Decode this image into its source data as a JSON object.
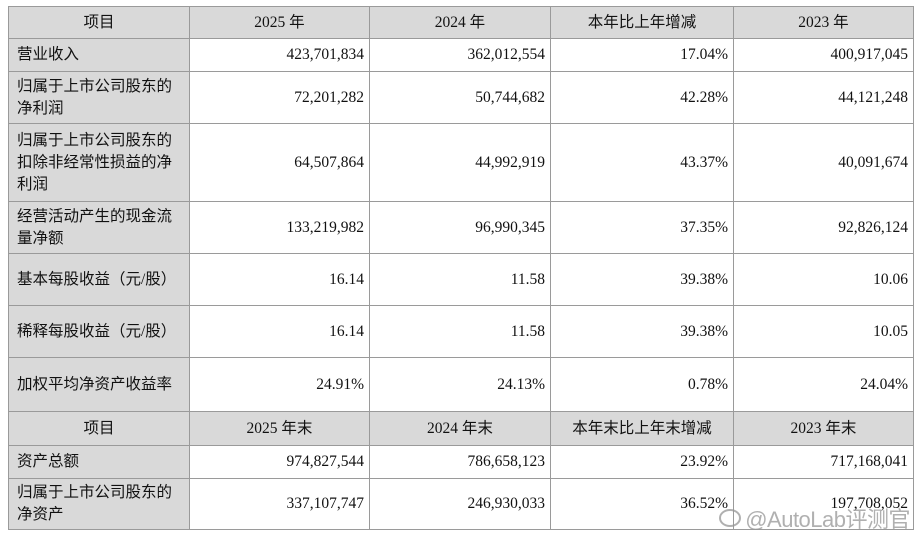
{
  "table1": {
    "headers": [
      "项目",
      "2025 年",
      "2024 年",
      "本年比上年增减",
      "2023 年"
    ],
    "rows": [
      {
        "label": "营业收入",
        "values": [
          "423,701,834",
          "362,012,554",
          "17.04%",
          "400,917,045"
        ]
      },
      {
        "label": "归属于上市公司股东的净利润",
        "values": [
          "72,201,282",
          "50,744,682",
          "42.28%",
          "44,121,248"
        ]
      },
      {
        "label": "归属于上市公司股东的扣除非经常性损益的净利润",
        "values": [
          "64,507,864",
          "44,992,919",
          "43.37%",
          "40,091,674"
        ]
      },
      {
        "label": "经营活动产生的现金流量净额",
        "values": [
          "133,219,982",
          "96,990,345",
          "37.35%",
          "92,826,124"
        ]
      },
      {
        "label": "基本每股收益（元/股）",
        "values": [
          "16.14",
          "11.58",
          "39.38%",
          "10.06"
        ]
      },
      {
        "label": "稀释每股收益（元/股）",
        "values": [
          "16.14",
          "11.58",
          "39.38%",
          "10.05"
        ]
      },
      {
        "label": "加权平均净资产收益率",
        "values": [
          "24.91%",
          "24.13%",
          "0.78%",
          "24.04%"
        ]
      }
    ]
  },
  "table2": {
    "headers": [
      "项目",
      "2025 年末",
      "2024 年末",
      "本年末比上年末增减",
      "2023 年末"
    ],
    "rows": [
      {
        "label": "资产总额",
        "values": [
          "974,827,544",
          "786,658,123",
          "23.92%",
          "717,168,041"
        ]
      },
      {
        "label": "归属于上市公司股东的净资产",
        "values": [
          "337,107,747",
          "246,930,033",
          "36.52%",
          "197,708,052"
        ]
      }
    ]
  },
  "watermark": {
    "text": "@AutoLab评测官",
    "icon": "weibo-icon"
  }
}
